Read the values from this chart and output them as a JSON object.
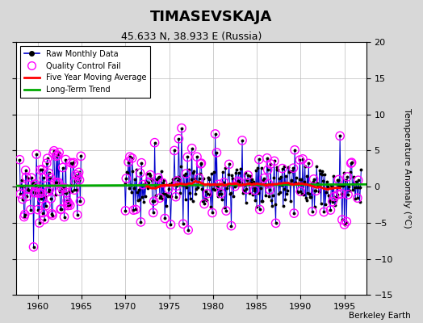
{
  "title": "TIMASEVSKAJA",
  "subtitle": "45.633 N, 38.933 E (Russia)",
  "ylabel": "Temperature Anomaly (°C)",
  "watermark": "Berkeley Earth",
  "xlim": [
    1957.5,
    1997.5
  ],
  "ylim": [
    -15,
    20
  ],
  "yticks": [
    -15,
    -10,
    -5,
    0,
    5,
    10,
    15,
    20
  ],
  "xticks": [
    1960,
    1965,
    1970,
    1975,
    1980,
    1985,
    1990,
    1995
  ],
  "bg_color": "#d8d8d8",
  "plot_bg_color": "#ffffff",
  "raw_color": "#0000cc",
  "qc_color": "#ff00ff",
  "ma_color": "#ff0000",
  "trend_color": "#00aa00",
  "trend_y": [
    0.1,
    0.3
  ],
  "period1_start": 1957.917,
  "period1_end": 1964.917,
  "period2_start": 1969.917,
  "period2_end": 1996.917
}
